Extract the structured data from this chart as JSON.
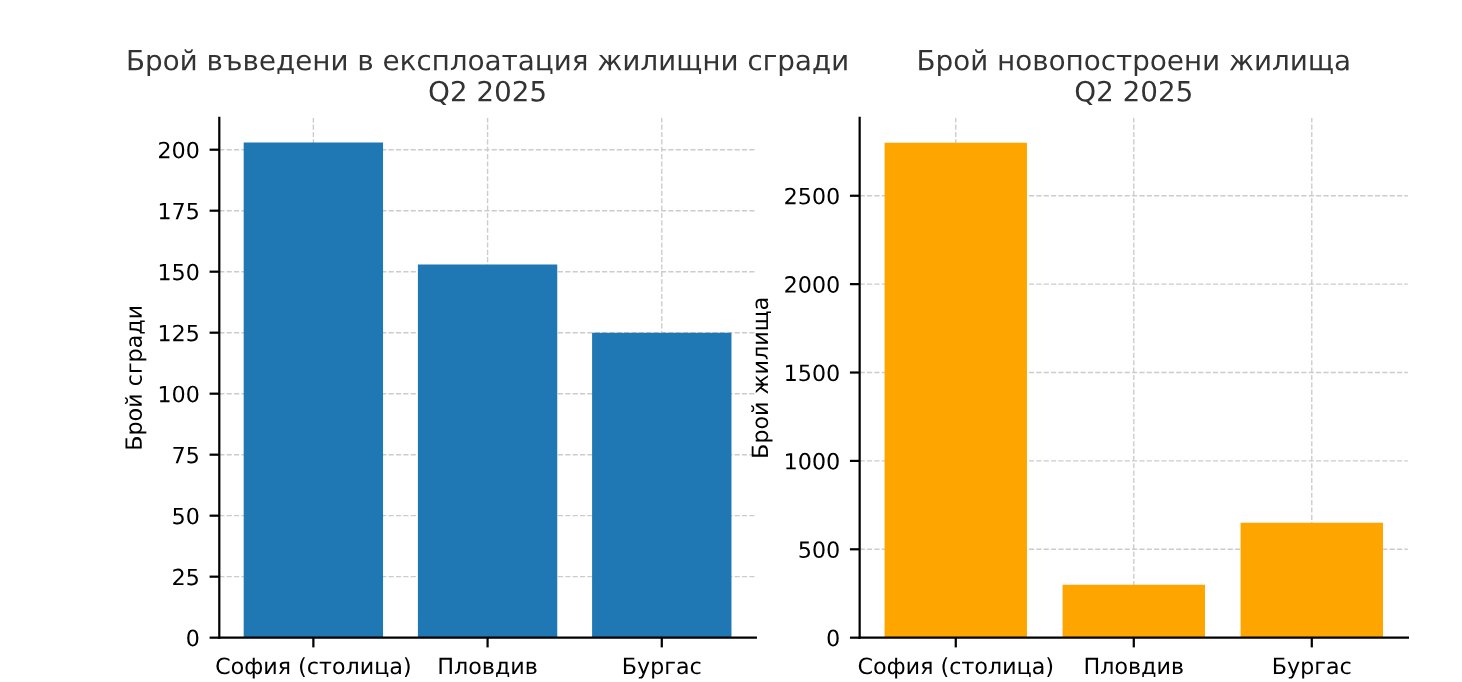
{
  "chart_data": [
    {
      "type": "bar",
      "title": "Брой въведени в експлоатация жилищни сгради\nQ2 2025",
      "ylabel": "Брой сгради",
      "categories": [
        "София (столица)",
        "Пловдив",
        "Бургас"
      ],
      "values": [
        203,
        153,
        125
      ],
      "color": "#1f77b4",
      "ylim": [
        0,
        213
      ],
      "yticks": [
        0,
        25,
        50,
        75,
        100,
        125,
        150,
        175,
        200
      ],
      "grid": true
    },
    {
      "type": "bar",
      "title": "Брой новопостроени жилища\nQ2 2025",
      "ylabel": "Брой жилища",
      "categories": [
        "София (столица)",
        "Пловдив",
        "Бургас"
      ],
      "values": [
        2800,
        300,
        650
      ],
      "color": "#ffa500",
      "ylim": [
        0,
        2940
      ],
      "yticks": [
        0,
        500,
        1000,
        1500,
        2000,
        2500
      ],
      "grid": true
    }
  ]
}
